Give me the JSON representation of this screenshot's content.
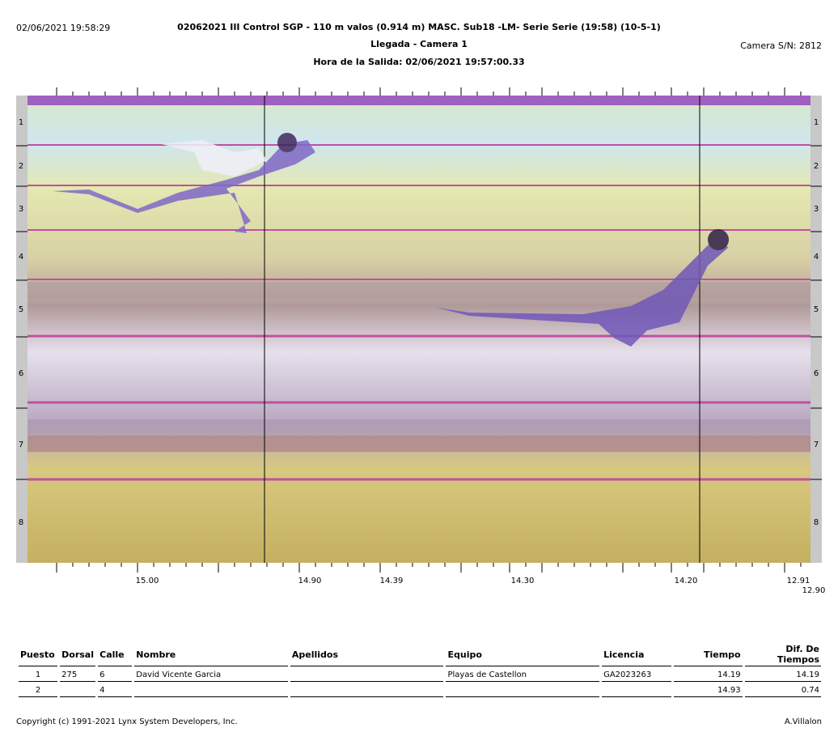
{
  "header": {
    "timestamp": "02/06/2021 19:58:29",
    "title": "02062021 III Control SGP - 110 m valos (0.914 m) MASC. Sub18 -LM- Serie Serie (19:58) (10-5-1)",
    "subtitle": "Llegada - Camera 1",
    "start_time": "Hora de la Salida: 02/06/2021 19:57:00.33",
    "camera_sn": "Camera S/N: 2812"
  },
  "lanes": [
    "1",
    "2",
    "3",
    "4",
    "5",
    "6",
    "7",
    "8"
  ],
  "time_scale": {
    "labels": [
      "15.00",
      "14.90",
      "14.39",
      "14.30",
      "14.20",
      "12.91",
      "12.90"
    ]
  },
  "results": {
    "columns": [
      "Puesto",
      "Dorsal",
      "Calle",
      "Nombre",
      "Apellidos",
      "Equipo",
      "Licencia",
      "Tiempo",
      "Dif. De Tiempos"
    ],
    "rows": [
      {
        "puesto": "1",
        "dorsal": "275",
        "calle": "6",
        "nombre": "David Vicente Garcia",
        "apellidos": "",
        "equipo": "Playas de Castellon",
        "licencia": "GA2023263",
        "tiempo": "14.19",
        "dif": "14.19"
      },
      {
        "puesto": "2",
        "dorsal": "",
        "calle": "4",
        "nombre": "",
        "apellidos": "",
        "equipo": "",
        "licencia": "",
        "tiempo": "14.93",
        "dif": "0.74"
      }
    ]
  },
  "footer": {
    "copyright": "Copyright (c) 1991-2021 Lynx System Developers, Inc.",
    "operator": "A.Villalon"
  }
}
